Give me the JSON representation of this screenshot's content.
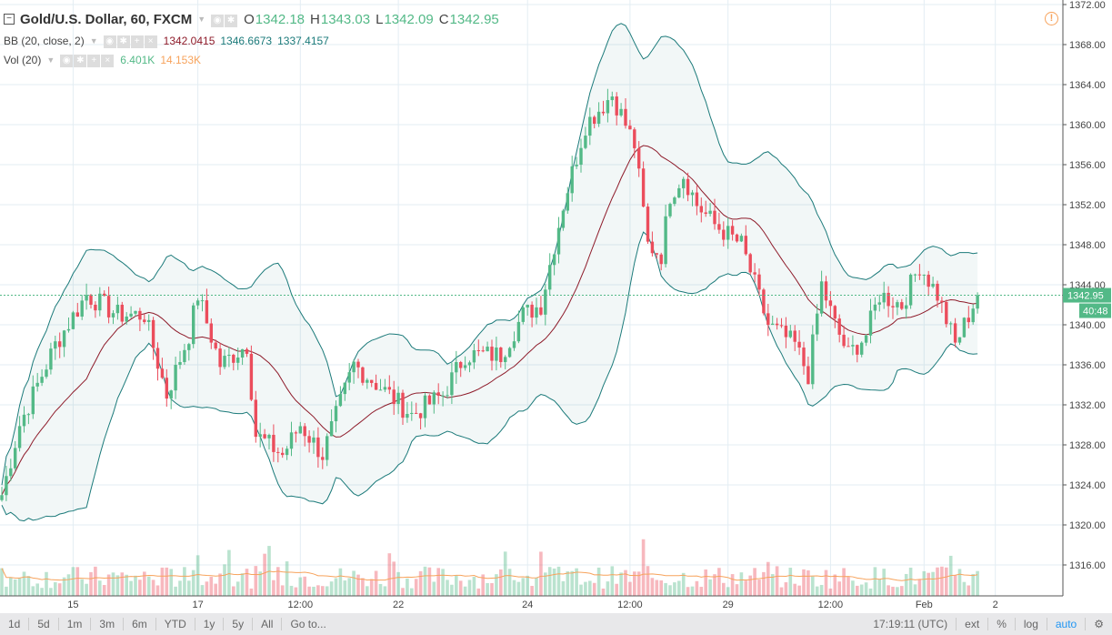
{
  "header": {
    "symbol": "Gold/U.S. Dollar, 60, FXCM",
    "o_label": "O",
    "o": "1342.18",
    "h_label": "H",
    "h": "1343.03",
    "l_label": "L",
    "l": "1342.09",
    "c_label": "C",
    "c": "1342.95"
  },
  "bb": {
    "label": "BB (20, close, 2)",
    "basis": "1342.0415",
    "upper": "1346.6673",
    "lower": "1337.4157"
  },
  "vol": {
    "label": "Vol (20)",
    "value": "6.401K",
    "ma": "14.153K"
  },
  "price_label": "1342.95",
  "countdown": "40:48",
  "toolbar": {
    "ranges": [
      "1d",
      "5d",
      "1m",
      "3m",
      "6m",
      "YTD",
      "1y",
      "5y",
      "All",
      "Go to..."
    ],
    "time": "17:19:11 (UTC)",
    "ext": "ext",
    "pct": "%",
    "log": "log",
    "auto": "auto"
  },
  "colors": {
    "up": "#53b987",
    "down": "#eb4d5c",
    "band": "#1b7a7a",
    "basis": "#8e1b2a",
    "volma": "#f7a35c",
    "auto": "#2196f3"
  },
  "chart_data": {
    "type": "candlestick",
    "y_ticks": [
      1372,
      1368,
      1364,
      1360,
      1356,
      1352,
      1348,
      1344,
      1340,
      1336,
      1332,
      1328,
      1324,
      1320,
      1316
    ],
    "ylim": [
      1312,
      1372
    ],
    "x_ticks": [
      {
        "label": "15",
        "bar": 16
      },
      {
        "label": "17",
        "bar": 44
      },
      {
        "label": "12:00",
        "bar": 67
      },
      {
        "label": "22",
        "bar": 89
      },
      {
        "label": "24",
        "bar": 118
      },
      {
        "label": "12:00",
        "bar": 141
      },
      {
        "label": "29",
        "bar": 163
      },
      {
        "label": "12:00",
        "bar": 186
      },
      {
        "label": "Feb",
        "bar": 207
      },
      {
        "label": "2",
        "bar": 223
      }
    ],
    "bars": 220,
    "close_path": [
      [
        0,
        1323
      ],
      [
        4,
        1330
      ],
      [
        12,
        1338
      ],
      [
        19,
        1343
      ],
      [
        26,
        1341
      ],
      [
        32,
        1341
      ],
      [
        37,
        1333
      ],
      [
        42,
        1339
      ],
      [
        44,
        1343
      ],
      [
        49,
        1336
      ],
      [
        55,
        1338
      ],
      [
        57,
        1329
      ],
      [
        63,
        1327
      ],
      [
        67,
        1330
      ],
      [
        72,
        1327
      ],
      [
        79,
        1336
      ],
      [
        87,
        1333
      ],
      [
        92,
        1331
      ],
      [
        99,
        1333
      ],
      [
        104,
        1337
      ],
      [
        112,
        1337
      ],
      [
        117,
        1341
      ],
      [
        121,
        1342
      ],
      [
        126,
        1352
      ],
      [
        131,
        1360
      ],
      [
        137,
        1363
      ],
      [
        142,
        1358
      ],
      [
        145,
        1348
      ],
      [
        148,
        1347
      ],
      [
        150,
        1353
      ],
      [
        153,
        1355
      ],
      [
        156,
        1352
      ],
      [
        160,
        1350
      ],
      [
        166,
        1348
      ],
      [
        172,
        1340
      ],
      [
        178,
        1338
      ],
      [
        181,
        1335
      ],
      [
        184,
        1344
      ],
      [
        187,
        1340
      ],
      [
        190,
        1337
      ],
      [
        194,
        1339
      ],
      [
        197,
        1343
      ],
      [
        202,
        1342
      ],
      [
        206,
        1346
      ],
      [
        210,
        1343
      ],
      [
        214,
        1338
      ],
      [
        219,
        1342.95
      ]
    ],
    "last_close": 1342.95
  }
}
